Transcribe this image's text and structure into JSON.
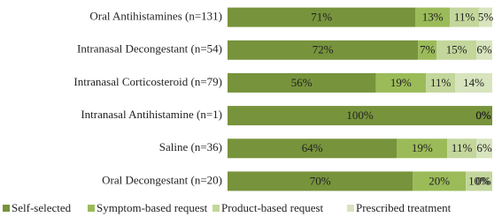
{
  "chart_data": {
    "type": "stacked-bar",
    "categories": [
      "Oral Antihistamines (n=131)",
      "Intranasal Decongestant (n=54)",
      "Intranasal Corticosteroid (n=79)",
      "Intranasal Antihistamine (n=1)",
      "Saline (n=36)",
      "Oral Decongestant (n=20)"
    ],
    "series": [
      {
        "name": "Self-selected",
        "color": "#77933c",
        "values": [
          71,
          72,
          56,
          100,
          64,
          70
        ],
        "value_labels": [
          "71%",
          "72%",
          "56%",
          "100%",
          "64%",
          "70%"
        ]
      },
      {
        "name": "Symptom-based request",
        "color": "#9bbb59",
        "values": [
          13,
          7,
          19,
          0,
          19,
          20
        ],
        "value_labels": [
          "13%",
          "7%",
          "19%",
          "0%",
          "19%",
          "20%"
        ]
      },
      {
        "name": "Product-based request",
        "color": "#c3d69b",
        "values": [
          11,
          15,
          11,
          0,
          11,
          10
        ],
        "value_labels": [
          "11%",
          "15%",
          "11%",
          "0%",
          "11%",
          "10%"
        ]
      },
      {
        "name": "Prescribed treatment",
        "color": "#d7e4bd",
        "values": [
          5,
          6,
          14,
          0,
          6,
          0
        ],
        "value_labels": [
          "5%",
          "6%",
          "14%",
          "0%",
          "6%",
          "0%"
        ]
      }
    ],
    "xlim": [
      0,
      100
    ],
    "legend": "bottom"
  }
}
